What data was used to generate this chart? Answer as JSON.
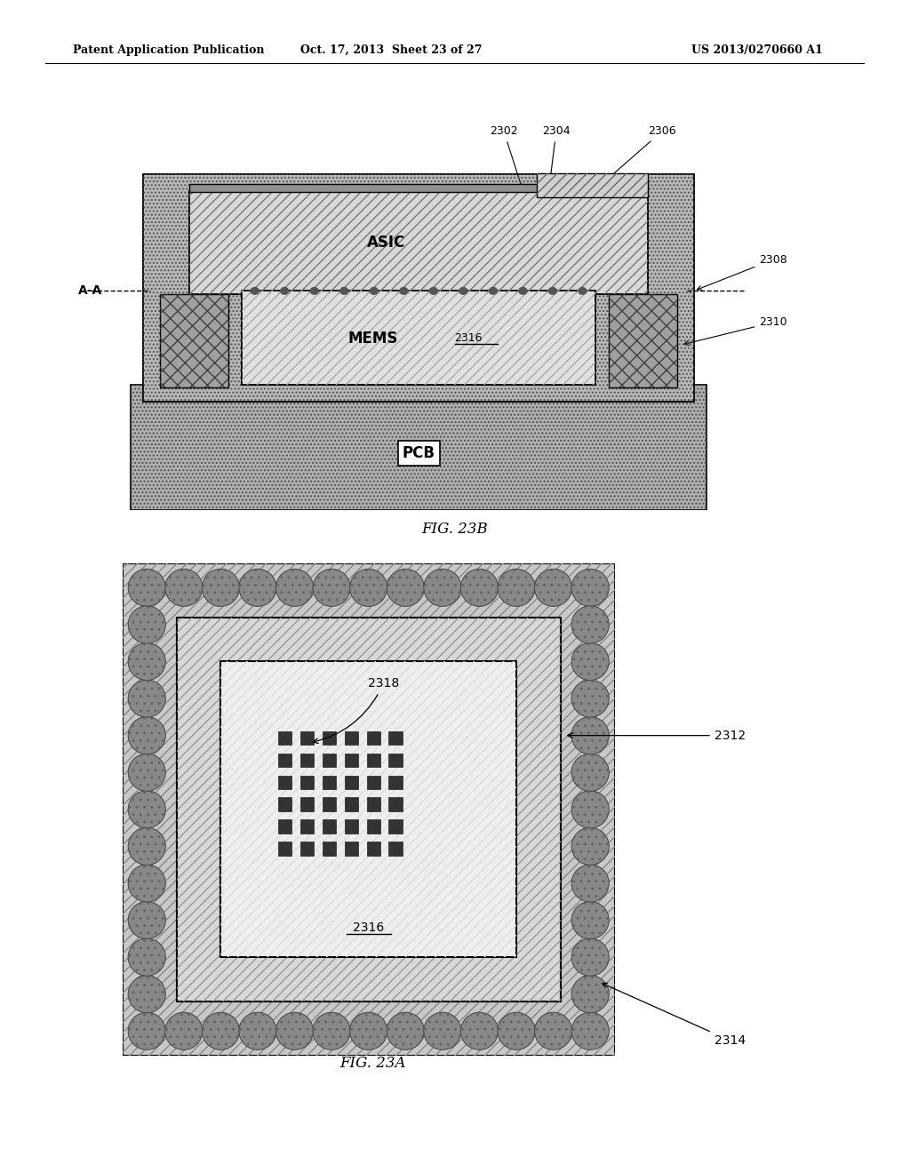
{
  "header_left": "Patent Application Publication",
  "header_mid": "Oct. 17, 2013  Sheet 23 of 27",
  "header_right": "US 2013/0270660 A1",
  "fig23b_label": "FIG. 23B",
  "fig23a_label": "FIG. 23A",
  "labels": {
    "ASIC": "ASIC",
    "MEMS": "MEMS",
    "PCB": "PCB",
    "AA": "A-A",
    "2302": "2302",
    "2304": "2304",
    "2306": "2306",
    "2308": "2308",
    "2310": "2310",
    "2316_top": "2316",
    "2312": "2312",
    "2314": "2314",
    "2316_bot": "2316",
    "2318": "2318"
  },
  "bg_color": "#ffffff"
}
